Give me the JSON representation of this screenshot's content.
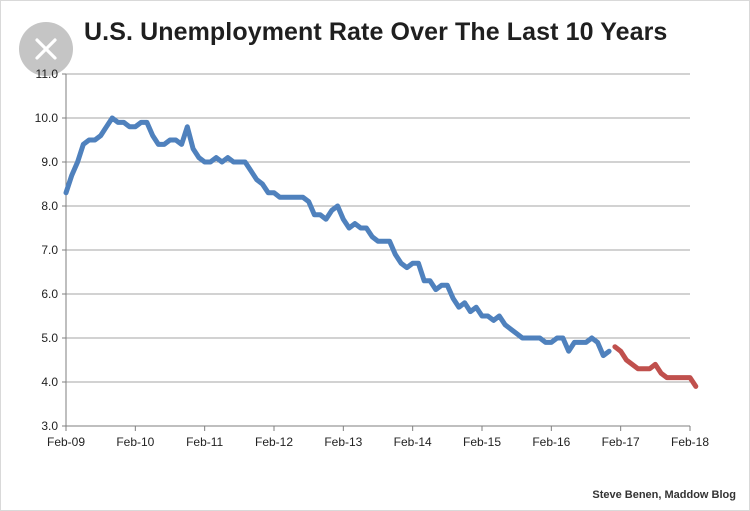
{
  "header": {
    "title": "U.S. Unemployment Rate Over The Last 10 Years"
  },
  "close_icon": "close-icon",
  "footer": {
    "credit": "Steve Benen, Maddow Blog"
  },
  "chart_data": {
    "type": "line",
    "title": "U.S. Unemployment Rate Over The Last 10 Years",
    "xlabel": "",
    "ylabel": "",
    "ylim": [
      3.0,
      11.0
    ],
    "y_ticks": [
      "3.0",
      "4.0",
      "5.0",
      "6.0",
      "7.0",
      "8.0",
      "9.0",
      "10.0",
      "11.0"
    ],
    "x_ticks": [
      "Feb-09",
      "Feb-10",
      "Feb-11",
      "Feb-12",
      "Feb-13",
      "Feb-14",
      "Feb-15",
      "Feb-16",
      "Feb-17",
      "Feb-18"
    ],
    "grid": "horizontal",
    "legend": "none",
    "series": [
      {
        "color": "#4f81bd",
        "x": [
          "2009-02",
          "2009-03",
          "2009-04",
          "2009-05",
          "2009-06",
          "2009-07",
          "2009-08",
          "2009-09",
          "2009-10",
          "2009-11",
          "2009-12",
          "2010-01",
          "2010-02",
          "2010-03",
          "2010-04",
          "2010-05",
          "2010-06",
          "2010-07",
          "2010-08",
          "2010-09",
          "2010-10",
          "2010-11",
          "2010-12",
          "2011-01",
          "2011-02",
          "2011-03",
          "2011-04",
          "2011-05",
          "2011-06",
          "2011-07",
          "2011-08",
          "2011-09",
          "2011-10",
          "2011-11",
          "2011-12",
          "2012-01",
          "2012-02",
          "2012-03",
          "2012-04",
          "2012-05",
          "2012-06",
          "2012-07",
          "2012-08",
          "2012-09",
          "2012-10",
          "2012-11",
          "2012-12",
          "2013-01",
          "2013-02",
          "2013-03",
          "2013-04",
          "2013-05",
          "2013-06",
          "2013-07",
          "2013-08",
          "2013-09",
          "2013-10",
          "2013-11",
          "2013-12",
          "2014-01",
          "2014-02",
          "2014-03",
          "2014-04",
          "2014-05",
          "2014-06",
          "2014-07",
          "2014-08",
          "2014-09",
          "2014-10",
          "2014-11",
          "2014-12",
          "2015-01",
          "2015-02",
          "2015-03",
          "2015-04",
          "2015-05",
          "2015-06",
          "2015-07",
          "2015-08",
          "2015-09",
          "2015-10",
          "2015-11",
          "2015-12",
          "2016-01",
          "2016-02",
          "2016-03",
          "2016-04",
          "2016-05",
          "2016-06",
          "2016-07",
          "2016-08",
          "2016-09",
          "2016-10",
          "2016-11",
          "2016-12"
        ],
        "values": [
          8.3,
          8.7,
          9.0,
          9.4,
          9.5,
          9.5,
          9.6,
          9.8,
          10.0,
          9.9,
          9.9,
          9.8,
          9.8,
          9.9,
          9.9,
          9.6,
          9.4,
          9.4,
          9.5,
          9.5,
          9.4,
          9.8,
          9.3,
          9.1,
          9.0,
          9.0,
          9.1,
          9.0,
          9.1,
          9.0,
          9.0,
          9.0,
          8.8,
          8.6,
          8.5,
          8.3,
          8.3,
          8.2,
          8.2,
          8.2,
          8.2,
          8.2,
          8.1,
          7.8,
          7.8,
          7.7,
          7.9,
          8.0,
          7.7,
          7.5,
          7.6,
          7.5,
          7.5,
          7.3,
          7.2,
          7.2,
          7.2,
          6.9,
          6.7,
          6.6,
          6.7,
          6.7,
          6.3,
          6.3,
          6.1,
          6.2,
          6.2,
          5.9,
          5.7,
          5.8,
          5.6,
          5.7,
          5.5,
          5.5,
          5.4,
          5.5,
          5.3,
          5.2,
          5.1,
          5.0,
          5.0,
          5.0,
          5.0,
          4.9,
          4.9,
          5.0,
          5.0,
          4.7,
          4.9,
          4.9,
          4.9,
          5.0,
          4.9,
          4.6,
          4.7
        ]
      },
      {
        "color": "#c0504d",
        "x": [
          "2017-01",
          "2017-02",
          "2017-03",
          "2017-04",
          "2017-05",
          "2017-06",
          "2017-07",
          "2017-08",
          "2017-09",
          "2017-10",
          "2017-11",
          "2017-12",
          "2018-01",
          "2018-02",
          "2018-03"
        ],
        "values": [
          4.8,
          4.7,
          4.5,
          4.4,
          4.3,
          4.3,
          4.3,
          4.4,
          4.2,
          4.1,
          4.1,
          4.1,
          4.1,
          4.1,
          3.9
        ]
      }
    ]
  }
}
